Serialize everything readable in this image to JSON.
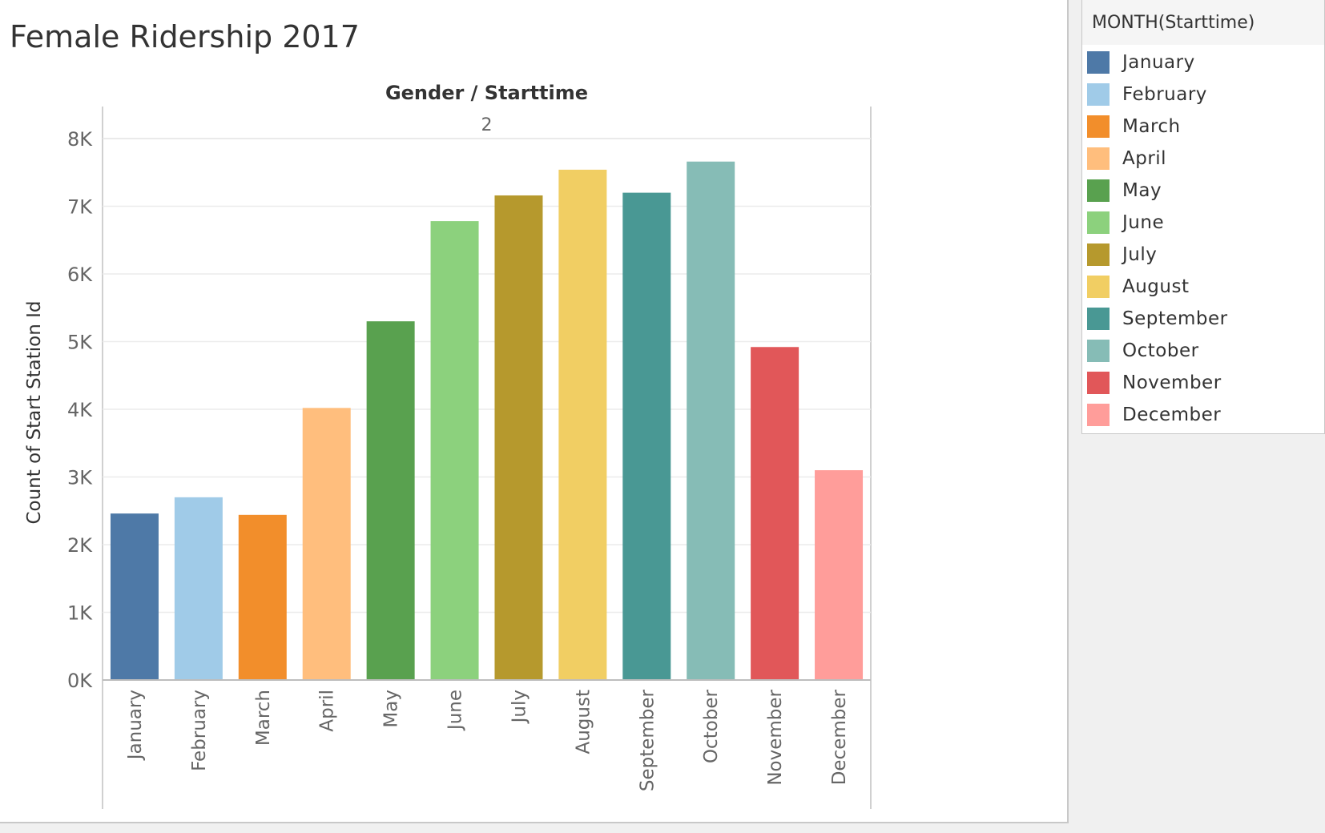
{
  "sheet": {
    "title": "Female Ridership 2017"
  },
  "legend": {
    "title": "MONTH(Starttime)",
    "items": [
      {
        "label": "January",
        "color": "#4e79a7"
      },
      {
        "label": "February",
        "color": "#a0cbe8"
      },
      {
        "label": "March",
        "color": "#f28e2b"
      },
      {
        "label": "April",
        "color": "#ffbe7d"
      },
      {
        "label": "May",
        "color": "#59a14f"
      },
      {
        "label": "June",
        "color": "#8cd17d"
      },
      {
        "label": "July",
        "color": "#b6992d"
      },
      {
        "label": "August",
        "color": "#f1ce63"
      },
      {
        "label": "September",
        "color": "#499894"
      },
      {
        "label": "October",
        "color": "#86bcb6"
      },
      {
        "label": "November",
        "color": "#e15759"
      },
      {
        "label": "December",
        "color": "#ff9d9a"
      }
    ]
  },
  "chart_data": {
    "type": "bar",
    "column_header": "Gender / Starttime",
    "panel_label": "2",
    "ylabel": "Count of Start Station Id",
    "xlabel": "",
    "categories": [
      "January",
      "February",
      "March",
      "April",
      "May",
      "June",
      "July",
      "August",
      "September",
      "October",
      "November",
      "December"
    ],
    "values": [
      2460,
      2700,
      2440,
      4020,
      5300,
      6780,
      7160,
      7540,
      7200,
      7660,
      4920,
      3100
    ],
    "colors": [
      "#4e79a7",
      "#a0cbe8",
      "#f28e2b",
      "#ffbe7d",
      "#59a14f",
      "#8cd17d",
      "#b6992d",
      "#f1ce63",
      "#499894",
      "#86bcb6",
      "#e15759",
      "#ff9d9a"
    ],
    "ylim": [
      0,
      8000
    ],
    "yticks": [
      0,
      1000,
      2000,
      3000,
      4000,
      5000,
      6000,
      7000,
      8000
    ],
    "ytick_labels": [
      "0K",
      "1K",
      "2K",
      "3K",
      "4K",
      "5K",
      "6K",
      "7K",
      "8K"
    ],
    "grid": true,
    "legend_position": "right"
  }
}
